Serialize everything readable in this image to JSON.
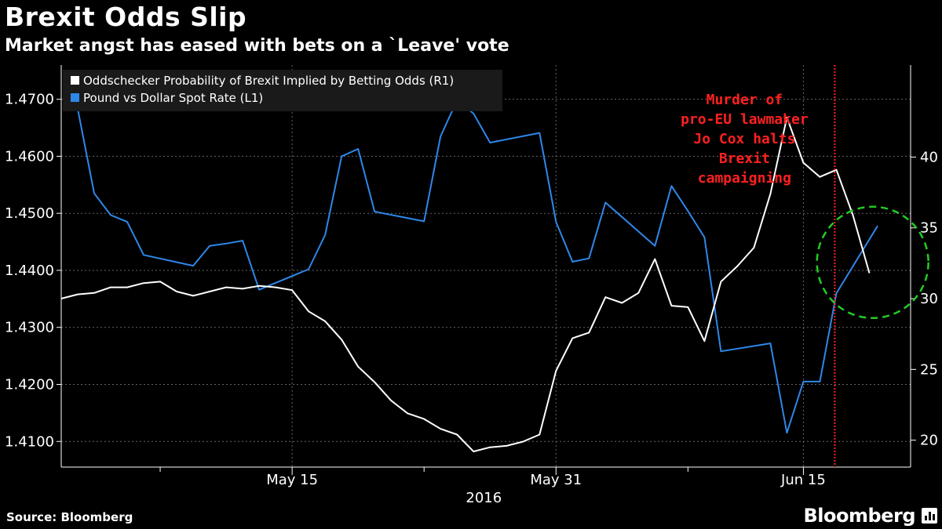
{
  "header": {
    "title": "Brexit Odds Slip",
    "subtitle": "Market angst has eased with bets on a `Leave' vote"
  },
  "footer": {
    "source": "Source: Bloomberg",
    "brand": "Bloomberg"
  },
  "colors": {
    "background": "#000000",
    "pound_series": "#2f87e8",
    "odds_series": "#ffffff",
    "annotation": "#ff2020",
    "highlight_circle": "#22cc22"
  },
  "chart_data": {
    "type": "line",
    "title": "Brexit Odds Slip",
    "subtitle": "Market angst has eased with bets on a `Leave' vote",
    "x_ticks": [
      {
        "x": 14,
        "label": "May 15"
      },
      {
        "x": 30,
        "label": "May 31"
      },
      {
        "x": 45,
        "label": "Jun 15"
      }
    ],
    "x_minor_ticks": [
      6,
      22,
      38
    ],
    "xlabel": "2016",
    "xlim": [
      0,
      51.5
    ],
    "left_axis": {
      "ylim": [
        1.4055,
        1.476
      ],
      "ticks": [
        1.41,
        1.42,
        1.43,
        1.44,
        1.45,
        1.46,
        1.47
      ],
      "tick_labels": [
        "1.4100",
        "1.4200",
        "1.4300",
        "1.4400",
        "1.4500",
        "1.4600",
        "1.4700"
      ]
    },
    "right_axis": {
      "ylim": [
        18.1,
        46.5
      ],
      "ticks": [
        20,
        25,
        30,
        35,
        40
      ],
      "tick_labels": [
        "20",
        "25",
        "30",
        "35",
        "40"
      ]
    },
    "legend": {
      "placement": "top-left",
      "entries": [
        {
          "label": "Oddschecker Probability of Brexit Implied by Betting Odds (R1)",
          "series": "odds"
        },
        {
          "label": "Pound vs Dollar Spot Rate (L1)",
          "series": "pound"
        }
      ]
    },
    "series": [
      {
        "name": "Pound vs Dollar Spot Rate (L1)",
        "key": "pound",
        "axis": "left",
        "points": [
          [
            1,
            1.4683
          ],
          [
            2,
            1.4535
          ],
          [
            3,
            1.4497
          ],
          [
            4,
            1.4485
          ],
          [
            5,
            1.4427
          ],
          [
            8,
            1.4408
          ],
          [
            9,
            1.4443
          ],
          [
            10,
            1.4447
          ],
          [
            11,
            1.4452
          ],
          [
            12,
            1.4366
          ],
          [
            15,
            1.4402
          ],
          [
            16,
            1.4462
          ],
          [
            17,
            1.46
          ],
          [
            18,
            1.4613
          ],
          [
            19,
            1.4503
          ],
          [
            22,
            1.4486
          ],
          [
            23,
            1.4635
          ],
          [
            24,
            1.4698
          ],
          [
            25,
            1.4675
          ],
          [
            26,
            1.4624
          ],
          [
            29,
            1.4641
          ],
          [
            30,
            1.4485
          ],
          [
            31,
            1.4415
          ],
          [
            32,
            1.4421
          ],
          [
            33,
            1.4519
          ],
          [
            36,
            1.4443
          ],
          [
            37,
            1.4548
          ],
          [
            38,
            1.4504
          ],
          [
            39,
            1.4458
          ],
          [
            40,
            1.4258
          ],
          [
            43,
            1.4272
          ],
          [
            44,
            1.4115
          ],
          [
            45,
            1.4205
          ],
          [
            46,
            1.4205
          ],
          [
            47,
            1.436
          ],
          [
            49.5,
            1.4478
          ]
        ]
      },
      {
        "name": "Oddschecker Probability of Brexit Implied by Betting Odds (R1)",
        "key": "odds",
        "axis": "right",
        "points": [
          [
            0,
            30.0
          ],
          [
            1,
            30.3
          ],
          [
            2,
            30.4
          ],
          [
            3,
            30.8
          ],
          [
            4,
            30.8
          ],
          [
            5,
            31.1
          ],
          [
            6,
            31.2
          ],
          [
            7,
            30.5
          ],
          [
            8,
            30.2
          ],
          [
            9,
            30.5
          ],
          [
            10,
            30.8
          ],
          [
            11,
            30.7
          ],
          [
            12,
            30.9
          ],
          [
            13,
            30.8
          ],
          [
            14,
            30.6
          ],
          [
            15,
            29.1
          ],
          [
            16,
            28.4
          ],
          [
            17,
            27.1
          ],
          [
            18,
            25.2
          ],
          [
            19,
            24.1
          ],
          [
            20,
            22.8
          ],
          [
            21,
            21.9
          ],
          [
            22,
            21.5
          ],
          [
            23,
            20.8
          ],
          [
            24,
            20.4
          ],
          [
            25,
            19.2
          ],
          [
            26,
            19.5
          ],
          [
            27,
            19.6
          ],
          [
            28,
            19.9
          ],
          [
            29,
            20.4
          ],
          [
            30,
            24.9
          ],
          [
            31,
            27.2
          ],
          [
            32,
            27.6
          ],
          [
            33,
            30.1
          ],
          [
            34,
            29.7
          ],
          [
            35,
            30.4
          ],
          [
            36,
            32.8
          ],
          [
            37,
            29.5
          ],
          [
            38,
            29.4
          ],
          [
            39,
            27.0
          ],
          [
            40,
            31.2
          ],
          [
            41,
            32.3
          ],
          [
            42,
            33.6
          ],
          [
            43,
            37.4
          ],
          [
            44,
            42.8
          ],
          [
            45,
            39.6
          ],
          [
            46,
            38.6
          ],
          [
            47,
            39.1
          ],
          [
            48,
            35.9
          ],
          [
            49,
            31.8
          ]
        ]
      }
    ],
    "event_line": {
      "x": 46.9
    },
    "annotation": {
      "lines": [
        "Murder of",
        "pro-EU lawmaker",
        "Jo Cox halts",
        "Brexit",
        "campaigning"
      ],
      "x": 40
    },
    "highlight_circle": {
      "cx": 49.2,
      "cy_left": 1.4414
    }
  }
}
